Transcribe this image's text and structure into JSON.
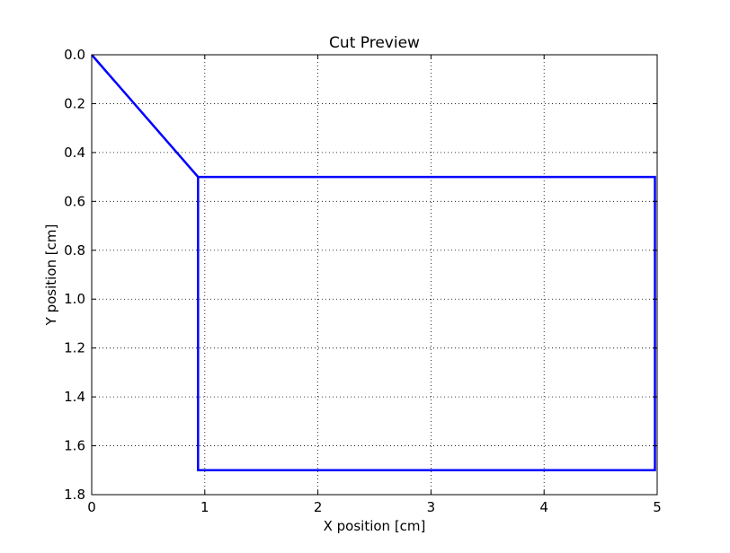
{
  "chart_data": {
    "type": "line",
    "title": "Cut Preview",
    "xlabel": "X position [cm]",
    "ylabel": "Y position [cm]",
    "xlim": [
      0,
      5
    ],
    "ylim": [
      0,
      1.8
    ],
    "y_inverted": true,
    "grid": true,
    "x_ticks": [
      0,
      1,
      2,
      3,
      4,
      5
    ],
    "x_tick_labels": [
      "0",
      "1",
      "2",
      "3",
      "4",
      "5"
    ],
    "y_ticks": [
      0.0,
      0.2,
      0.4,
      0.6,
      0.8,
      1.0,
      1.2,
      1.4,
      1.6,
      1.8
    ],
    "y_tick_labels": [
      "0.0",
      "0.2",
      "0.4",
      "0.6",
      "0.8",
      "1.0",
      "1.2",
      "1.4",
      "1.6",
      "1.8"
    ],
    "series": [
      {
        "color": "#0000ff",
        "x": [
          0,
          0.94,
          4.98,
          4.98,
          0.94,
          0.94
        ],
        "y": [
          0,
          0.5,
          0.5,
          1.7,
          1.7,
          0.5
        ]
      }
    ]
  }
}
